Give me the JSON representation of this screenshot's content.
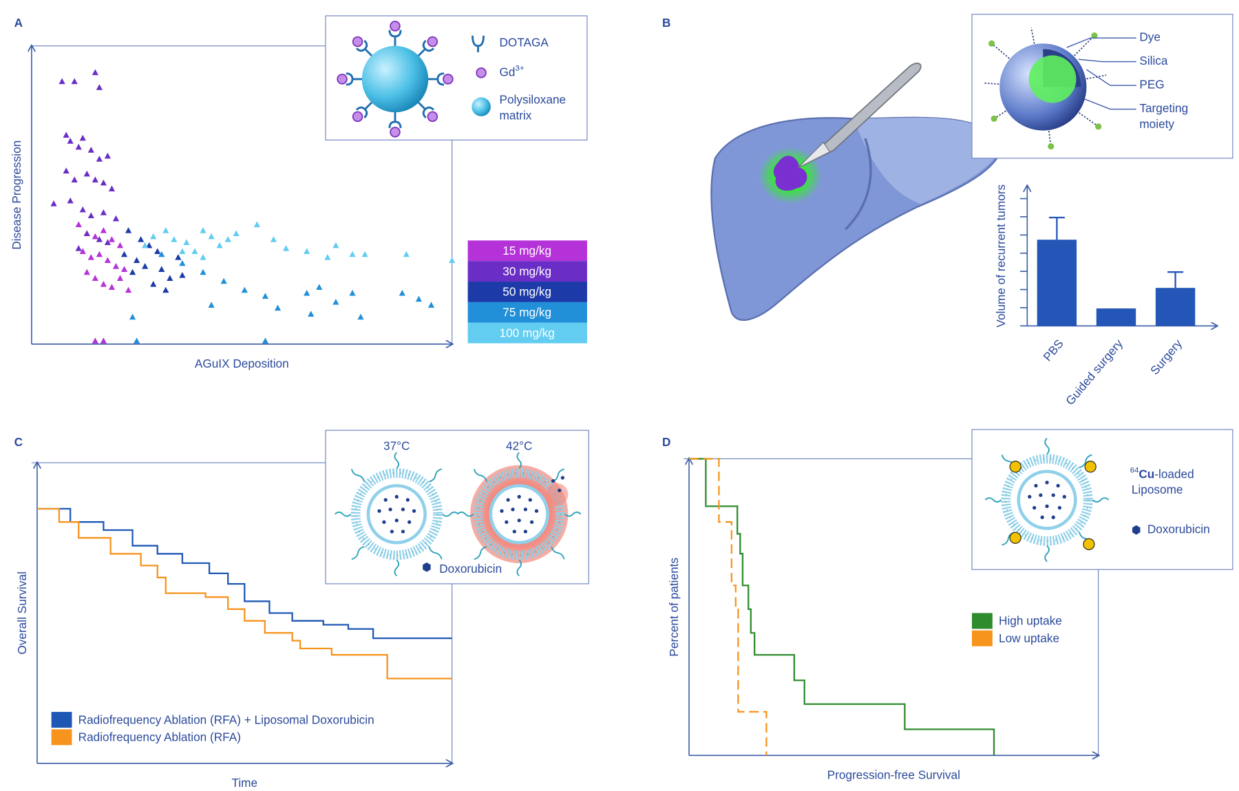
{
  "chart_data": [
    {
      "type": "scatter",
      "panel": "A",
      "xlabel": "AGuIX Deposition",
      "ylabel": "Disease Progression",
      "xlim": [
        0,
        100
      ],
      "ylim": [
        0,
        100
      ],
      "legend": "right",
      "series": [
        {
          "name": "15 mg/kg",
          "color": "#b532d9",
          "x": [
            10,
            12,
            14,
            16,
            18,
            20,
            11,
            13,
            15,
            17,
            19,
            21,
            12,
            14,
            16,
            18,
            20,
            22,
            14,
            16
          ],
          "values": [
            40,
            37,
            36,
            38,
            35,
            33,
            31,
            29,
            30,
            28,
            26,
            25,
            24,
            22,
            20,
            19,
            22,
            18,
            1,
            1
          ]
        },
        {
          "name": "30 mg/kg",
          "color": "#6a2ec6",
          "x": [
            6,
            9,
            14,
            15,
            7,
            8,
            10,
            11,
            13,
            15,
            17,
            7,
            9,
            12,
            14,
            16,
            18,
            4,
            8,
            11,
            13,
            16,
            19,
            12,
            15,
            17,
            10
          ],
          "values": [
            88,
            88,
            91,
            86,
            70,
            68,
            66,
            69,
            65,
            62,
            63,
            58,
            55,
            57,
            55,
            54,
            52,
            47,
            48,
            45,
            43,
            44,
            42,
            37,
            35,
            34,
            32
          ]
        },
        {
          "name": "50 mg/kg",
          "color": "#1c3ba8",
          "x": [
            22,
            25,
            27,
            29,
            24,
            26,
            30,
            32,
            28,
            31,
            35,
            21,
            34,
            23
          ],
          "values": [
            38,
            35,
            33,
            31,
            28,
            26,
            25,
            22,
            20,
            18,
            23,
            30,
            29,
            24
          ]
        },
        {
          "name": "75 mg/kg",
          "color": "#2190d8",
          "x": [
            30,
            35,
            40,
            45,
            50,
            55,
            42,
            58,
            65,
            68,
            72,
            76,
            78,
            88,
            92,
            95,
            23,
            55,
            24,
            66
          ],
          "values": [
            30,
            27,
            24,
            21,
            18,
            16,
            13,
            12,
            17,
            19,
            14,
            17,
            9,
            17,
            15,
            13,
            9,
            1,
            1,
            10
          ]
        },
        {
          "name": "100 mg/kg",
          "color": "#62cdf1",
          "x": [
            26,
            28,
            31,
            33,
            36,
            38,
            40,
            42,
            44,
            46,
            48,
            40,
            35,
            53,
            57,
            60,
            65,
            70,
            72,
            76,
            79,
            89,
            100
          ],
          "values": [
            33,
            36,
            38,
            35,
            34,
            31,
            38,
            36,
            33,
            35,
            37,
            29,
            31,
            40,
            35,
            32,
            31,
            29,
            33,
            30,
            30,
            30,
            28
          ]
        }
      ],
      "inset": {
        "dotaga": "DOTAGA",
        "gd": "Gd",
        "gd_charge": "3+",
        "matrix": [
          "Polysiloxane",
          "matrix"
        ]
      }
    },
    {
      "type": "bar",
      "panel": "B",
      "ylabel": "Volume of recurrent tumors",
      "categories": [
        "PBS",
        "Guided surgery",
        "Surgery"
      ],
      "values": [
        4.74,
        0.96,
        2.09
      ],
      "errors": [
        1.22,
        null,
        0.87
      ],
      "color": "#2356b6",
      "ylim": [
        0,
        7.7
      ],
      "yticks": [
        0,
        1,
        2,
        3,
        4,
        5,
        6,
        7
      ],
      "inset": {
        "dye": "Dye",
        "silica": "Silica",
        "peg": "PEG",
        "targeting": [
          "Targeting",
          "moiety"
        ]
      }
    },
    {
      "type": "line",
      "panel": "C",
      "xlabel": "Time",
      "ylabel": "Overall Survival",
      "step": true,
      "xlim": [
        0,
        100
      ],
      "ylim": [
        0,
        100
      ],
      "legend": "lower left",
      "series": [
        {
          "name": "Radiofrequency Ablation (RFA) + Liposomal Doxorubicin",
          "color": "#1f57b5",
          "x": [
            0,
            8,
            16,
            23,
            29,
            35,
            41.5,
            46,
            50,
            56,
            61.5,
            69,
            75,
            81,
            100
          ],
          "values": [
            84.7,
            80.3,
            77.6,
            72.4,
            69.7,
            66.6,
            63.2,
            59.7,
            53.9,
            50,
            47.4,
            46.1,
            44.7,
            41.6,
            41.6
          ]
        },
        {
          "name": "Radiofrequency Ablation (RFA)",
          "color": "#f7941d",
          "x": [
            0,
            5.3,
            10,
            17.7,
            25,
            29,
            31,
            40.6,
            46,
            50,
            54.9,
            61.5,
            63.4,
            71,
            84.4,
            100
          ],
          "values": [
            84.7,
            80.3,
            75,
            69.7,
            65.8,
            61.8,
            56.6,
            55.3,
            51.3,
            47.4,
            43.4,
            40.8,
            38.2,
            36.1,
            28.2,
            28.2
          ]
        }
      ],
      "inset": {
        "temp_low": "37°C",
        "temp_high": "42°C",
        "drug": "Doxorubicin"
      }
    },
    {
      "type": "line",
      "panel": "D",
      "xlabel": "Progression-free Survival",
      "ylabel": "Percent of patients",
      "step": true,
      "xlim": [
        0,
        100
      ],
      "ylim": [
        0,
        100
      ],
      "legend": "center right",
      "series": [
        {
          "name": "High uptake",
          "color": "#2e8b2e",
          "dashed": false,
          "x": [
            0,
            4.1,
            11.8,
            12.5,
            13.1,
            14.5,
            15.1,
            16,
            25.7,
            28.2,
            52.7,
            74.5
          ],
          "values": [
            100,
            84,
            74.7,
            68,
            57.3,
            49.3,
            41.3,
            33.9,
            25.3,
            17.3,
            8.8,
            0
          ]
        },
        {
          "name": "Low uptake",
          "color": "#f7941d",
          "dashed": true,
          "x": [
            0,
            7.3,
            10.4,
            11.4,
            12,
            18.9
          ],
          "values": [
            100,
            78.7,
            57.3,
            49.3,
            14.7,
            0
          ]
        }
      ],
      "inset": {
        "isotope": "64",
        "element": "Cu",
        "suffix": "-loaded",
        "liposome": "Liposome",
        "drug": "Doxorubicin"
      }
    }
  ]
}
